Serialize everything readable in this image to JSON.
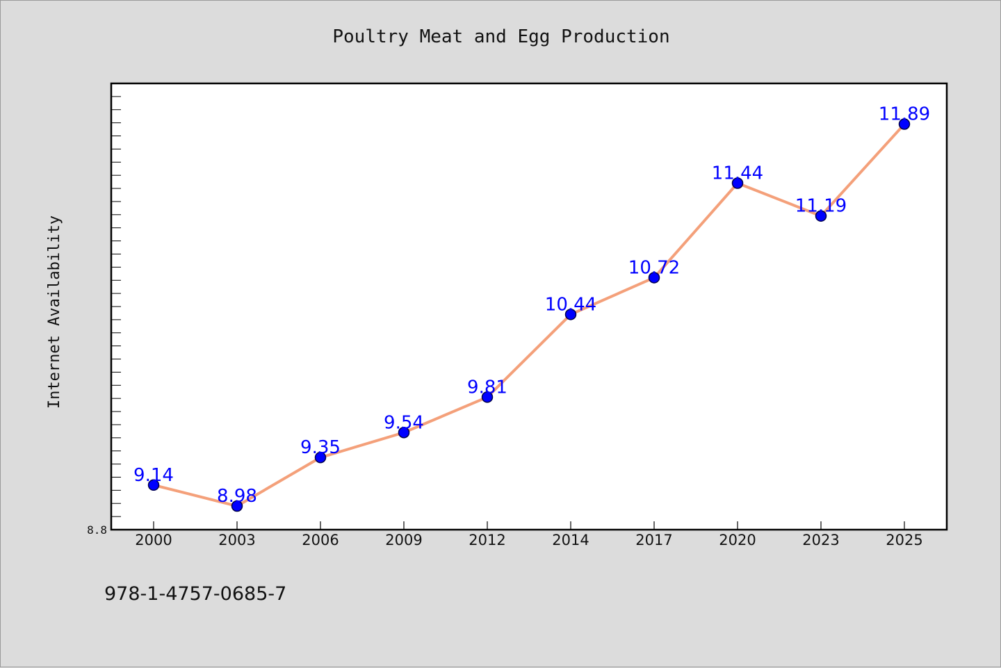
{
  "chart_data": {
    "type": "line",
    "title": "Poultry Meat and Egg Production",
    "xlabel": "",
    "ylabel": "Internet Availability",
    "categories": [
      "2000",
      "2003",
      "2006",
      "2009",
      "2012",
      "2014",
      "2017",
      "2020",
      "2023",
      "2025"
    ],
    "series": [
      {
        "values": [
          9.14,
          8.98,
          9.35,
          9.54,
          9.81,
          10.44,
          10.72,
          11.44,
          11.19,
          11.89
        ],
        "data_labels": [
          "9.14",
          "8.98",
          "9.35",
          "9.54",
          "9.81",
          "10.44",
          "10.72",
          "11.44",
          "11.19",
          "11.89"
        ]
      }
    ],
    "ylim": [
      8.8,
      12.2
    ],
    "ytick_labels": [
      "8.8"
    ],
    "grid": false,
    "legend": "none"
  },
  "footer": {
    "code": "978-1-4757-0685-7"
  },
  "colors": {
    "line": "#f4a07a",
    "marker": "#0000ff",
    "marker_edge": "#00004a",
    "label": "#0000ff",
    "plot_bg": "#ffffff",
    "page_bg": "#dcdcdc"
  }
}
